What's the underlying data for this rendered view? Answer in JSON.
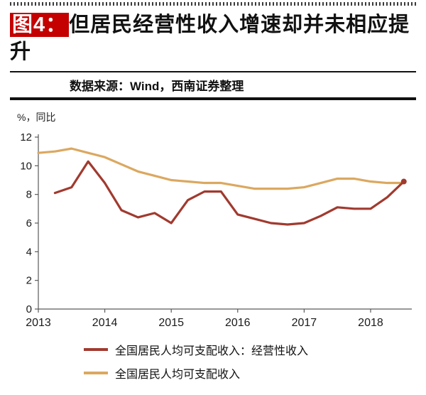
{
  "page": {
    "fig_label": "图4：",
    "title": "但居民经营性收入增速却并未相应提升",
    "source": "数据来源：Wind，西南证券整理"
  },
  "colors": {
    "accent_red": "#c40000",
    "axis": "#5a5a5a",
    "series_business_income": "#a13a2f",
    "series_disposable_income": "#dba860"
  },
  "chart_data": {
    "type": "line",
    "unit_label": "%，同比",
    "xlim": [
      2013,
      2018.62
    ],
    "ylim": [
      0,
      12
    ],
    "x_ticks": [
      2013,
      2014,
      2015,
      2016,
      2017,
      2018
    ],
    "y_ticks": [
      0,
      2,
      4,
      6,
      8,
      10,
      12
    ],
    "grid": false,
    "legend_position": "bottom",
    "series": [
      {
        "name": "全国居民人均可支配收入：经营性收入",
        "color": "#a13a2f",
        "end_marker": true,
        "x": [
          2013.25,
          2013.5,
          2013.75,
          2014,
          2014.25,
          2014.5,
          2014.75,
          2015,
          2015.25,
          2015.5,
          2015.75,
          2016,
          2016.25,
          2016.5,
          2016.75,
          2017,
          2017.25,
          2017.5,
          2017.75,
          2018,
          2018.25,
          2018.5
        ],
        "values": [
          8.1,
          8.5,
          10.3,
          8.8,
          6.9,
          6.4,
          6.7,
          6.0,
          7.6,
          8.2,
          8.2,
          6.6,
          6.3,
          6.0,
          5.9,
          6.0,
          6.5,
          7.1,
          7.0,
          7.0,
          7.8,
          8.9
        ]
      },
      {
        "name": "全国居民人均可支配收入",
        "color": "#dba860",
        "end_marker": false,
        "x": [
          2013,
          2013.25,
          2013.5,
          2013.75,
          2014,
          2014.25,
          2014.5,
          2014.75,
          2015,
          2015.25,
          2015.5,
          2015.75,
          2016,
          2016.25,
          2016.5,
          2016.75,
          2017,
          2017.25,
          2017.5,
          2017.75,
          2018,
          2018.25,
          2018.5
        ],
        "values": [
          10.9,
          11.0,
          11.2,
          10.9,
          10.6,
          10.1,
          9.6,
          9.3,
          9.0,
          8.9,
          8.8,
          8.8,
          8.6,
          8.4,
          8.4,
          8.4,
          8.5,
          8.8,
          9.1,
          9.1,
          8.9,
          8.8,
          8.8
        ]
      }
    ]
  }
}
